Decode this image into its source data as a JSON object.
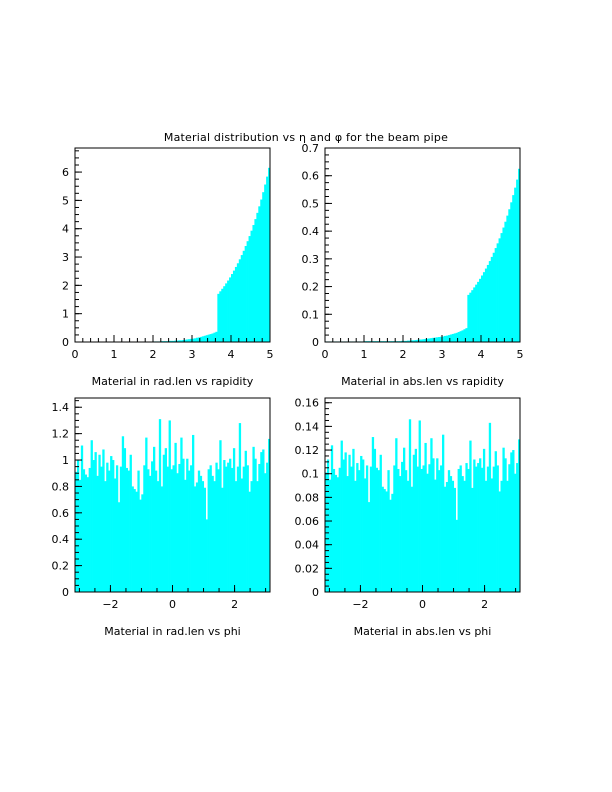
{
  "figure": {
    "title": "Material distribution vs η and φ for the beam pipe"
  },
  "colors": {
    "fill": "#00ffff",
    "axis": "#000000",
    "background": "#ffffff"
  },
  "chart_data": [
    {
      "type": "bar",
      "xlabel": "Material in rad.len vs rapidity",
      "xlim": [
        0,
        5
      ],
      "ylim": [
        0,
        6.85
      ],
      "xticks": [
        0,
        1,
        2,
        3,
        4,
        5
      ],
      "yticks": [
        0,
        1,
        2,
        3,
        4,
        5,
        6
      ],
      "x_bin_edges_start": 0,
      "bin_width": 0.05,
      "values": [
        0,
        0,
        0,
        0,
        0,
        0,
        0,
        0,
        0,
        0,
        0,
        0,
        0,
        0,
        0,
        0,
        0,
        0,
        0,
        0,
        0,
        0,
        0,
        0,
        0,
        0,
        0,
        0,
        0,
        0,
        0,
        0,
        0,
        0,
        0,
        0,
        0,
        0,
        0,
        0,
        0.02,
        0.02,
        0.02,
        0.02,
        0.03,
        0.03,
        0.03,
        0.03,
        0.04,
        0.04,
        0.04,
        0.05,
        0.05,
        0.06,
        0.06,
        0.07,
        0.08,
        0.09,
        0.1,
        0.11,
        0.12,
        0.13,
        0.15,
        0.16,
        0.18,
        0.2,
        0.22,
        0.24,
        0.26,
        0.28,
        0.3,
        0.33,
        0.36,
        1.7,
        1.79,
        1.88,
        1.97,
        2.07,
        2.17,
        2.28,
        2.4,
        2.52,
        2.65,
        2.78,
        2.92,
        3.07,
        3.22,
        3.39,
        3.56,
        3.74,
        3.93,
        4.13,
        4.34,
        4.56,
        4.79,
        5.03,
        5.29,
        5.56,
        5.84,
        6.15
      ]
    },
    {
      "type": "bar",
      "xlabel": "Material in abs.len vs rapidity",
      "xlim": [
        0,
        5
      ],
      "ylim": [
        0,
        0.7
      ],
      "xticks": [
        0,
        1,
        2,
        3,
        4,
        5
      ],
      "yticks": [
        0,
        0.1,
        0.2,
        0.3,
        0.4,
        0.5,
        0.6,
        0.7
      ],
      "x_bin_edges_start": 0,
      "bin_width": 0.05,
      "values": [
        0.002,
        0.002,
        0.002,
        0.002,
        0.002,
        0.002,
        0.002,
        0.002,
        0.002,
        0.002,
        0.002,
        0.002,
        0.002,
        0.002,
        0.002,
        0.002,
        0.002,
        0.002,
        0.002,
        0.002,
        0.003,
        0.003,
        0.003,
        0.003,
        0.003,
        0.003,
        0.003,
        0.003,
        0.003,
        0.003,
        0.003,
        0.003,
        0.003,
        0.003,
        0.003,
        0.003,
        0.003,
        0.003,
        0.003,
        0.004,
        0.004,
        0.004,
        0.005,
        0.005,
        0.006,
        0.006,
        0.007,
        0.008,
        0.009,
        0.009,
        0.01,
        0.011,
        0.012,
        0.013,
        0.014,
        0.015,
        0.016,
        0.017,
        0.018,
        0.019,
        0.02,
        0.022,
        0.023,
        0.025,
        0.027,
        0.029,
        0.031,
        0.033,
        0.036,
        0.039,
        0.042,
        0.046,
        0.05,
        0.17,
        0.178,
        0.187,
        0.197,
        0.207,
        0.217,
        0.228,
        0.24,
        0.252,
        0.265,
        0.278,
        0.292,
        0.307,
        0.322,
        0.339,
        0.356,
        0.374,
        0.393,
        0.413,
        0.434,
        0.456,
        0.479,
        0.504,
        0.53,
        0.557,
        0.586,
        0.625
      ]
    },
    {
      "type": "bar",
      "xlabel": "Material in rad.len vs phi",
      "xlim": [
        -3.1416,
        3.1416
      ],
      "ylim": [
        0,
        1.47
      ],
      "xticks": [
        -2,
        0,
        2
      ],
      "yticks": [
        0,
        0.2,
        0.4,
        0.6,
        0.8,
        1,
        1.2,
        1.4
      ],
      "x_bin_edges_start": -3.1416,
      "bin_width": 0.06283,
      "values": [
        0.91,
        1.0,
        0.85,
        1.11,
        0.93,
        0.89,
        0.87,
        0.94,
        1.15,
        1.0,
        1.06,
        0.88,
        1.04,
        0.95,
        1.08,
        0.84,
        0.98,
        0.92,
        1.03,
        1.0,
        0.86,
        0.96,
        0.68,
        0.95,
        1.18,
        1.09,
        0.94,
        0.92,
        1.04,
        0.8,
        0.78,
        0.76,
        0.92,
        0.7,
        0.74,
        0.96,
        1.17,
        0.93,
        0.88,
        0.99,
        1.1,
        0.92,
        0.84,
        1.31,
        0.8,
        1.04,
        1.09,
        0.95,
        1.3,
        0.93,
        0.96,
        1.13,
        0.9,
        0.97,
        1.17,
        1.01,
        0.85,
        1.01,
        0.92,
        0.96,
        1.19,
        0.8,
        0.83,
        0.92,
        0.88,
        0.84,
        0.79,
        0.55,
        0.93,
        0.96,
        0.88,
        0.84,
        0.98,
        0.93,
        1.15,
        0.79,
        1.0,
        0.95,
        0.98,
        1.01,
        0.94,
        1.09,
        0.84,
        0.95,
        1.28,
        0.86,
        0.95,
        1.07,
        0.96,
        0.76,
        0.84,
        1.1,
        1.01,
        0.84,
        0.97,
        1.06,
        1.08,
        0.9,
        0.98,
        1.16
      ]
    },
    {
      "type": "bar",
      "xlabel": "Material in abs.len vs phi",
      "xlim": [
        -3.1416,
        3.1416
      ],
      "ylim": [
        0,
        0.164
      ],
      "xticks": [
        -2,
        0,
        2
      ],
      "yticks": [
        0,
        0.02,
        0.04,
        0.06,
        0.08,
        0.1,
        0.12,
        0.14,
        0.16
      ],
      "x_bin_edges_start": -3.1416,
      "bin_width": 0.06283,
      "values": [
        0.101,
        0.112,
        0.095,
        0.124,
        0.104,
        0.099,
        0.097,
        0.105,
        0.128,
        0.112,
        0.118,
        0.098,
        0.116,
        0.106,
        0.121,
        0.094,
        0.109,
        0.103,
        0.115,
        0.112,
        0.096,
        0.107,
        0.076,
        0.106,
        0.131,
        0.121,
        0.105,
        0.103,
        0.116,
        0.089,
        0.087,
        0.085,
        0.103,
        0.078,
        0.083,
        0.107,
        0.13,
        0.104,
        0.098,
        0.11,
        0.122,
        0.103,
        0.094,
        0.146,
        0.089,
        0.116,
        0.121,
        0.106,
        0.145,
        0.104,
        0.107,
        0.126,
        0.1,
        0.108,
        0.13,
        0.113,
        0.095,
        0.113,
        0.103,
        0.107,
        0.133,
        0.089,
        0.093,
        0.103,
        0.098,
        0.094,
        0.088,
        0.061,
        0.104,
        0.107,
        0.098,
        0.094,
        0.109,
        0.104,
        0.128,
        0.088,
        0.112,
        0.106,
        0.109,
        0.113,
        0.105,
        0.121,
        0.094,
        0.106,
        0.143,
        0.096,
        0.106,
        0.119,
        0.107,
        0.085,
        0.094,
        0.122,
        0.113,
        0.094,
        0.108,
        0.118,
        0.12,
        0.1,
        0.109,
        0.129
      ]
    }
  ]
}
